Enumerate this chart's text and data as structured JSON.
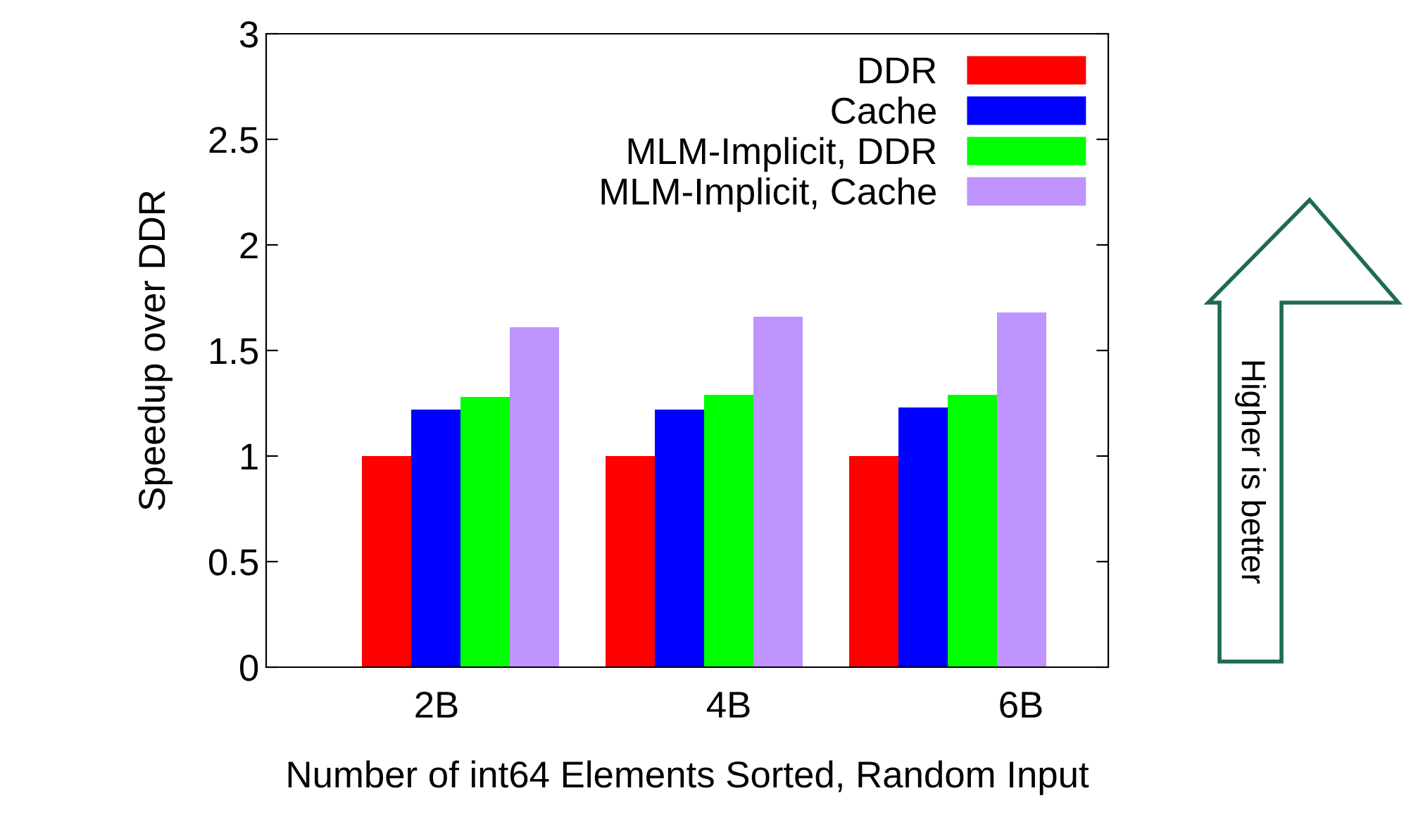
{
  "chart_data": {
    "type": "bar",
    "ylabel": "Speedup over DDR",
    "xlabel": "Number of int64 Elements Sorted, Random Input",
    "categories": [
      "2B",
      "4B",
      "6B"
    ],
    "series": [
      {
        "name": "DDR",
        "color": "#ff0000",
        "values": [
          1.0,
          1.0,
          1.0
        ]
      },
      {
        "name": "Cache",
        "color": "#0000ff",
        "values": [
          1.22,
          1.22,
          1.23
        ]
      },
      {
        "name": "MLM-Implicit, DDR",
        "color": "#00ff00",
        "values": [
          1.28,
          1.29,
          1.29
        ]
      },
      {
        "name": "MLM-Implicit, Cache",
        "color": "#bf94ff",
        "values": [
          1.61,
          1.66,
          1.68
        ]
      }
    ],
    "ylim": [
      0,
      3
    ],
    "yticks": [
      0,
      0.5,
      1,
      1.5,
      2,
      2.5,
      3
    ],
    "grid": false,
    "legend": "top right",
    "annotations": [
      "Higher is better"
    ]
  }
}
